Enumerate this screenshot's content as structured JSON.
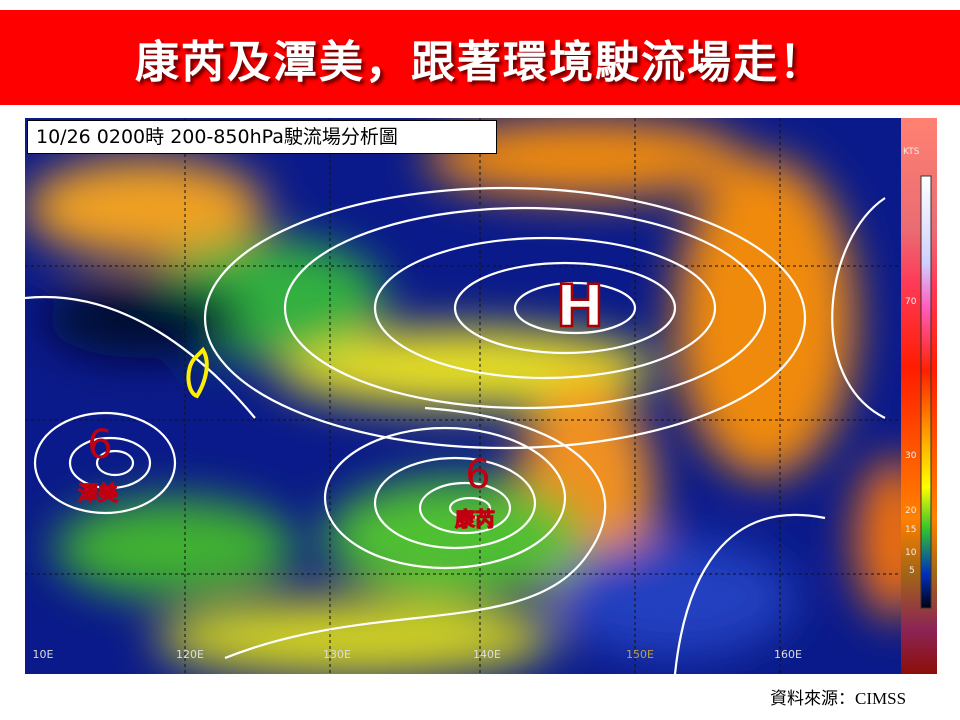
{
  "header": {
    "title": "康芮及潭美，跟著環境駛流場走！"
  },
  "map": {
    "caption": "10/26 0200時  200-850hPa駛流場分析圖",
    "high_label": "H",
    "storms": [
      "潭美",
      "康芮"
    ],
    "lon_labels": [
      "10E",
      "120E",
      "130E",
      "140E",
      "150E",
      "160E"
    ],
    "colorbar_unit": "KTS",
    "colorbar_labels": [
      "70",
      "30",
      "20",
      "15",
      "10",
      "5"
    ]
  },
  "source": "資料來源：CIMSS"
}
